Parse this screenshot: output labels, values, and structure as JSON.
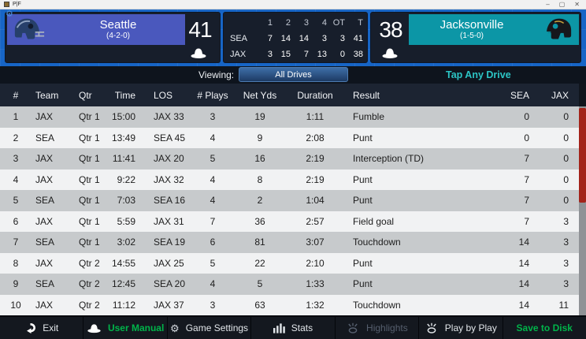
{
  "window": {
    "title": "P|F",
    "minimize": "–",
    "maximize": "▢",
    "close": "✕"
  },
  "teams": {
    "home": {
      "name": "Seattle",
      "record": "(4-2-0)",
      "score": "41",
      "abbr": "SEA",
      "banner_color": "#4a58bd"
    },
    "away": {
      "name": "Jacksonville",
      "record": "(1-5-0)",
      "score": "38",
      "abbr": "JAX",
      "banner_color": "#0c96a6"
    }
  },
  "line_score": {
    "periods": [
      "1",
      "2",
      "3",
      "4",
      "OT",
      "T"
    ],
    "rows": [
      {
        "team": "SEA",
        "values": [
          "7",
          "14",
          "14",
          "3",
          "3",
          "41"
        ]
      },
      {
        "team": "JAX",
        "values": [
          "3",
          "15",
          "7",
          "13",
          "0",
          "38"
        ]
      }
    ]
  },
  "viewing": {
    "label": "Viewing:",
    "selected_view": "All Drives",
    "hint": "Tap Any Drive"
  },
  "drives": {
    "columns": [
      "#",
      "Team",
      "Qtr",
      "Time",
      "LOS",
      "# Plays",
      "Net Yds",
      "Duration",
      "Result",
      "SEA",
      "JAX"
    ],
    "rows": [
      [
        "1",
        "JAX",
        "Qtr 1",
        "15:00",
        "JAX 33",
        "3",
        "19",
        "1:11",
        "Fumble",
        "0",
        "0"
      ],
      [
        "2",
        "SEA",
        "Qtr 1",
        "13:49",
        "SEA 45",
        "4",
        "9",
        "2:08",
        "Punt",
        "0",
        "0"
      ],
      [
        "3",
        "JAX",
        "Qtr 1",
        "11:41",
        "JAX 20",
        "5",
        "16",
        "2:19",
        "Interception (TD)",
        "7",
        "0"
      ],
      [
        "4",
        "JAX",
        "Qtr 1",
        "9:22",
        "JAX 32",
        "4",
        "8",
        "2:19",
        "Punt",
        "7",
        "0"
      ],
      [
        "5",
        "SEA",
        "Qtr 1",
        "7:03",
        "SEA 16",
        "4",
        "2",
        "1:04",
        "Punt",
        "7",
        "0"
      ],
      [
        "6",
        "JAX",
        "Qtr 1",
        "5:59",
        "JAX 31",
        "7",
        "36",
        "2:57",
        "Field goal",
        "7",
        "3"
      ],
      [
        "7",
        "SEA",
        "Qtr 1",
        "3:02",
        "SEA 19",
        "6",
        "81",
        "3:07",
        "Touchdown",
        "14",
        "3"
      ],
      [
        "8",
        "JAX",
        "Qtr 2",
        "14:55",
        "JAX 25",
        "5",
        "22",
        "2:10",
        "Punt",
        "14",
        "3"
      ],
      [
        "9",
        "SEA",
        "Qtr 2",
        "12:45",
        "SEA 20",
        "4",
        "5",
        "1:33",
        "Punt",
        "14",
        "3"
      ],
      [
        "10",
        "JAX",
        "Qtr 2",
        "11:12",
        "JAX 37",
        "3",
        "63",
        "1:32",
        "Touchdown",
        "14",
        "11"
      ]
    ]
  },
  "bottom_bar": {
    "items": [
      {
        "id": "exit",
        "label": "Exit",
        "icon": "exit-arrow-icon",
        "disabled": false,
        "accent": false
      },
      {
        "id": "user-manual",
        "label": "User Manual",
        "icon": "hat-icon",
        "disabled": false,
        "accent": true
      },
      {
        "id": "game-settings",
        "label": "Game Settings",
        "icon": "gear-icon",
        "disabled": false,
        "accent": false
      },
      {
        "id": "stats",
        "label": "Stats",
        "icon": "bar-chart-icon",
        "disabled": false,
        "accent": false
      },
      {
        "id": "highlights",
        "label": "Highlights",
        "icon": "whistle-icon",
        "disabled": true,
        "accent": false
      },
      {
        "id": "play-by-play",
        "label": "Play by Play",
        "icon": "whistle-icon",
        "disabled": false,
        "accent": false
      },
      {
        "id": "save-to-disk",
        "label": "Save to Disk",
        "icon": null,
        "disabled": false,
        "accent": true
      }
    ]
  },
  "colors": {
    "accent_green": "#00b44a",
    "hint_teal": "#2cc5c5",
    "scroll_thumb_red": "#a3231a",
    "top_blue": "#1765c6"
  }
}
